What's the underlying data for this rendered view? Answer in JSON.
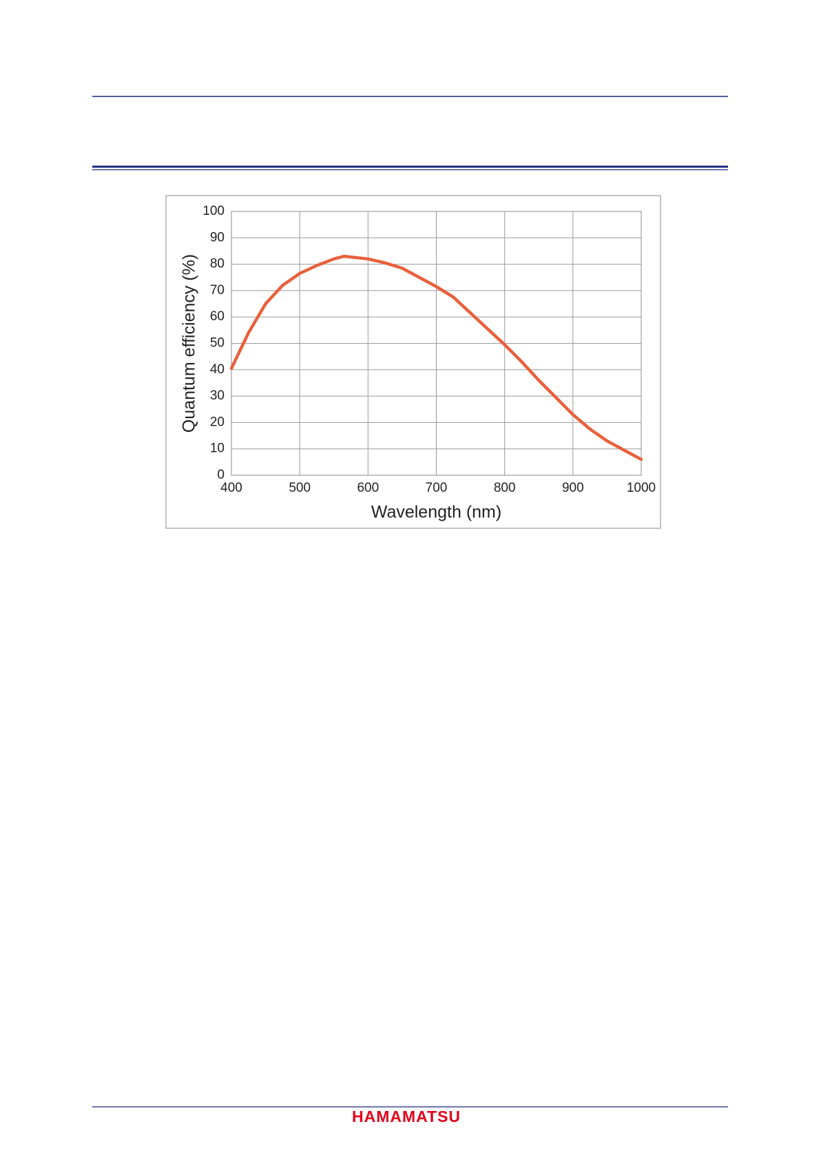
{
  "chart_data": {
    "type": "line",
    "xlabel": "Wavelength (nm)",
    "ylabel": "Quantum efficiency (%)",
    "x": [
      400,
      425,
      450,
      475,
      500,
      525,
      550,
      565,
      600,
      625,
      650,
      675,
      700,
      725,
      750,
      775,
      800,
      825,
      850,
      875,
      900,
      925,
      950,
      975,
      1000
    ],
    "series": [
      {
        "color": "#e8603c",
        "values": [
          40.5,
          54,
          65,
          72,
          76.5,
          79.5,
          82,
          83,
          82,
          80.5,
          78.5,
          75,
          71.5,
          67.5,
          61.5,
          55.5,
          49.5,
          43,
          36,
          29.5,
          23,
          17.5,
          13,
          9.5,
          6
        ]
      }
    ],
    "xlim": [
      400,
      1000
    ],
    "xticks": [
      400,
      500,
      600,
      700,
      800,
      900,
      1000
    ],
    "ylim": [
      0,
      100
    ],
    "yticks": [
      0,
      10,
      20,
      30,
      40,
      50,
      60,
      70,
      80,
      90,
      100
    ],
    "grid": true
  },
  "footer": {
    "logo": "HAMAMATSU"
  }
}
